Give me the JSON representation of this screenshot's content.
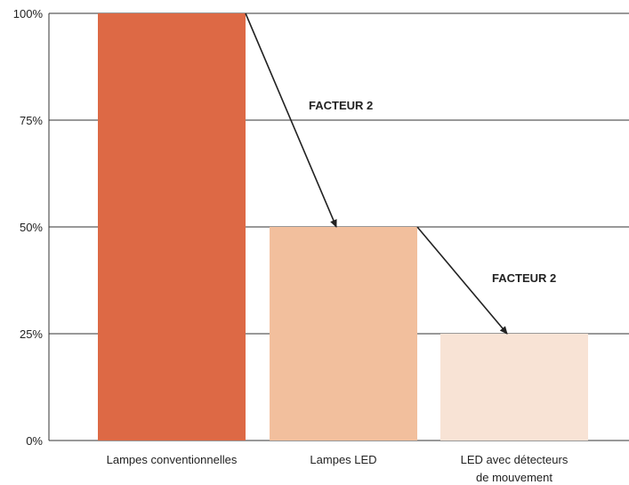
{
  "chart_data": {
    "type": "bar",
    "categories": [
      [
        "Lampes conventionnelles"
      ],
      [
        "Lampes LED"
      ],
      [
        "LED avec détecteurs",
        "de mouvement"
      ]
    ],
    "values": [
      100,
      50,
      25
    ],
    "value_unit": "%",
    "ylim": [
      0,
      100
    ],
    "yticks": [
      0,
      25,
      50,
      75,
      100
    ],
    "ytick_labels": [
      "0%",
      "25%",
      "50%",
      "75%",
      "100%"
    ],
    "grid": true,
    "title": "",
    "xlabel": "",
    "ylabel": "",
    "colors": [
      "#dd6945",
      "#f2bf9d",
      "#f8e3d5"
    ],
    "annotations": [
      {
        "text": "FACTEUR 2",
        "from_category": 0,
        "to_category": 1
      },
      {
        "text": "FACTEUR 2",
        "from_category": 1,
        "to_category": 2
      }
    ]
  }
}
